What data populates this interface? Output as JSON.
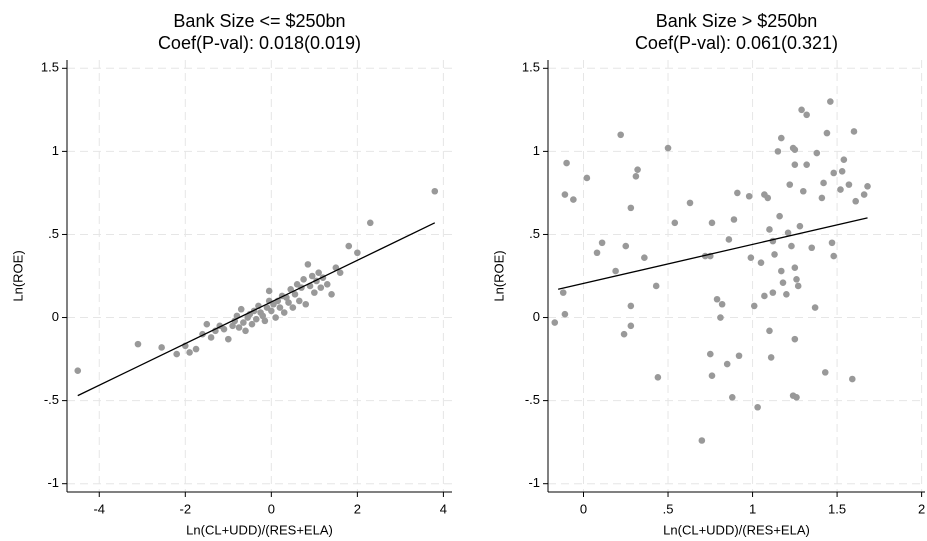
{
  "chart_data": [
    {
      "type": "scatter",
      "title": "Bank Size <= $250bn",
      "subtitle": "Coef(P-val): 0.018(0.019)",
      "x_label": "Ln(CL+UDD)/(RES+ELA)",
      "y_label": "Ln(ROE)",
      "grid": true,
      "xlim": [
        -4.75,
        4.2
      ],
      "ylim": [
        -1.05,
        1.55
      ],
      "xticks": [
        -4,
        -2,
        0,
        2,
        4
      ],
      "yticks": [
        -1,
        {
          "value": -0.5,
          "label": "-.5"
        },
        0,
        {
          "value": 0.5,
          "label": ".5"
        },
        1,
        1.5
      ],
      "series": [
        {
          "type": "scatter",
          "color": "#999999",
          "x": [
            -4.5,
            -3.1,
            -2.55,
            -2.2,
            -2.0,
            -1.9,
            -1.75,
            -1.6,
            -1.5,
            -1.4,
            -1.3,
            -1.2,
            -1.1,
            -1.0,
            -0.9,
            -0.85,
            -0.8,
            -0.75,
            -0.7,
            -0.65,
            -0.6,
            -0.55,
            -0.5,
            -0.45,
            -0.4,
            -0.35,
            -0.3,
            -0.25,
            -0.2,
            -0.15,
            -0.1,
            -0.05,
            -0.05,
            0.0,
            0.05,
            0.1,
            0.15,
            0.2,
            0.25,
            0.3,
            0.35,
            0.4,
            0.45,
            0.5,
            0.55,
            0.6,
            0.65,
            0.7,
            0.75,
            0.8,
            0.85,
            0.9,
            0.95,
            1.0,
            1.05,
            1.1,
            1.15,
            1.2,
            1.3,
            1.4,
            1.5,
            1.6,
            1.8,
            2.0,
            2.3,
            3.8
          ],
          "values": [
            -0.32,
            -0.16,
            -0.18,
            -0.22,
            -0.17,
            -0.21,
            -0.19,
            -0.1,
            -0.04,
            -0.12,
            -0.08,
            -0.05,
            -0.07,
            -0.13,
            -0.05,
            -0.02,
            0.01,
            -0.06,
            0.05,
            -0.03,
            -0.08,
            0.0,
            0.02,
            -0.04,
            0.04,
            -0.01,
            0.07,
            0.03,
            0.01,
            -0.02,
            0.06,
            0.16,
            0.1,
            0.04,
            0.08,
            0.0,
            0.1,
            0.06,
            0.13,
            0.03,
            0.12,
            0.09,
            0.17,
            0.06,
            0.14,
            0.2,
            0.1,
            0.18,
            0.23,
            0.08,
            0.32,
            0.19,
            0.25,
            0.15,
            0.22,
            0.27,
            0.18,
            0.24,
            0.2,
            0.14,
            0.3,
            0.27,
            0.43,
            0.39,
            0.57,
            0.76
          ]
        },
        {
          "type": "line",
          "color": "#000000",
          "x": [
            -4.5,
            3.8
          ],
          "values": [
            -0.47,
            0.57
          ]
        }
      ]
    },
    {
      "type": "scatter",
      "title": "Bank Size > $250bn",
      "subtitle": "Coef(P-val): 0.061(0.321)",
      "x_label": "Ln(CL+UDD)/(RES+ELA)",
      "y_label": "Ln(ROE)",
      "grid": true,
      "xlim": [
        -0.21,
        2.02
      ],
      "ylim": [
        -1.05,
        1.55
      ],
      "xticks": [
        0,
        {
          "value": 0.5,
          "label": ".5"
        },
        1,
        1.5,
        2
      ],
      "yticks": [
        -1,
        {
          "value": -0.5,
          "label": "-.5"
        },
        0,
        {
          "value": 0.5,
          "label": ".5"
        },
        1,
        1.5
      ],
      "series": [
        {
          "type": "scatter",
          "color": "#999999",
          "x": [
            -0.17,
            -0.12,
            -0.11,
            -0.11,
            -0.1,
            -0.06,
            0.02,
            0.08,
            0.11,
            0.19,
            0.22,
            0.24,
            0.25,
            0.28,
            0.28,
            0.28,
            0.31,
            0.32,
            0.36,
            0.43,
            0.5,
            0.54,
            0.44,
            0.63,
            0.7,
            0.72,
            0.75,
            0.75,
            0.76,
            0.76,
            0.79,
            0.81,
            0.82,
            0.85,
            0.86,
            0.88,
            0.89,
            0.91,
            0.92,
            0.98,
            0.99,
            1.01,
            1.03,
            1.05,
            1.07,
            1.07,
            1.09,
            1.1,
            1.1,
            1.11,
            1.12,
            1.12,
            1.13,
            1.15,
            1.16,
            1.17,
            1.17,
            1.18,
            1.2,
            1.21,
            1.22,
            1.23,
            1.24,
            1.25,
            1.25,
            1.24,
            1.25,
            1.25,
            1.26,
            1.26,
            1.27,
            1.28,
            1.29,
            1.3,
            1.32,
            1.32,
            1.35,
            1.37,
            1.38,
            1.41,
            1.42,
            1.43,
            1.44,
            1.46,
            1.47,
            1.48,
            1.48,
            1.52,
            1.53,
            1.54,
            1.57,
            1.59,
            1.6,
            1.61,
            1.66,
            1.68
          ],
          "values": [
            -0.03,
            0.15,
            0.02,
            0.74,
            0.93,
            0.71,
            0.84,
            0.39,
            0.45,
            0.28,
            1.1,
            -0.1,
            0.43,
            0.66,
            0.07,
            -0.05,
            0.85,
            0.89,
            0.36,
            0.19,
            1.02,
            0.57,
            -0.36,
            0.69,
            -0.74,
            0.37,
            0.37,
            -0.22,
            -0.35,
            0.57,
            0.11,
            0.0,
            0.08,
            -0.28,
            0.47,
            -0.48,
            0.59,
            0.75,
            -0.23,
            0.73,
            0.36,
            0.07,
            -0.54,
            0.33,
            0.13,
            0.74,
            0.72,
            0.53,
            -0.08,
            -0.24,
            0.15,
            0.46,
            0.38,
            1.0,
            0.61,
            1.08,
            0.28,
            0.21,
            0.14,
            0.51,
            0.8,
            0.43,
            1.02,
            0.92,
            1.01,
            -0.47,
            0.3,
            -0.13,
            -0.48,
            0.23,
            0.19,
            0.55,
            1.25,
            0.76,
            0.92,
            1.22,
            0.42,
            0.06,
            0.99,
            0.72,
            0.81,
            -0.33,
            1.11,
            1.3,
            0.45,
            0.37,
            0.87,
            0.77,
            0.88,
            0.95,
            0.8,
            -0.37,
            1.12,
            0.7,
            0.74,
            0.79
          ]
        },
        {
          "type": "line",
          "color": "#000000",
          "x": [
            -0.15,
            1.68
          ],
          "values": [
            0.17,
            0.6
          ]
        }
      ]
    }
  ]
}
